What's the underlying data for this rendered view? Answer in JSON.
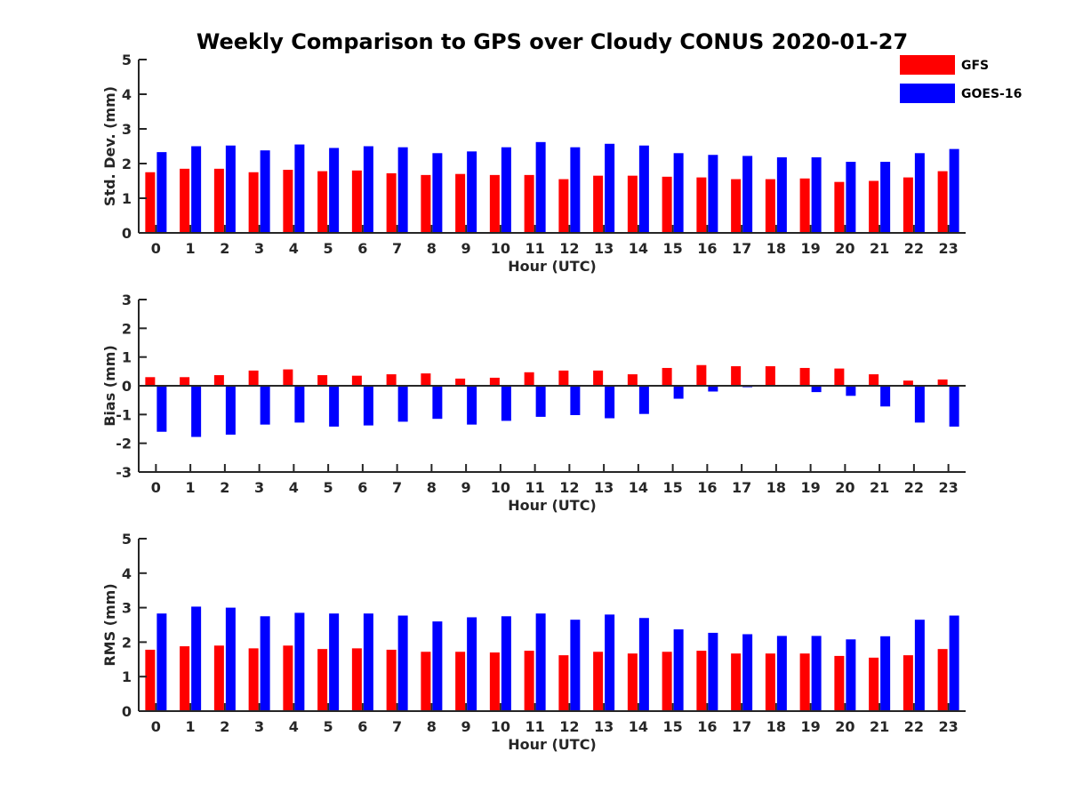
{
  "title": "Weekly Comparison to GPS over Cloudy CONUS 2020-01-27",
  "legend": {
    "placement": "top-right",
    "items": [
      {
        "name": "GFS",
        "color": "#ff0000"
      },
      {
        "name": "GOES-16",
        "color": "#0000ff"
      }
    ]
  },
  "chart_data": [
    {
      "type": "bar",
      "xlabel": "Hour (UTC)",
      "ylabel": "Std. Dev. (mm)",
      "ylim": [
        0,
        5
      ],
      "yticks": [
        "0",
        "1",
        "2",
        "3",
        "4",
        "5"
      ],
      "categories": [
        "0",
        "1",
        "2",
        "3",
        "4",
        "5",
        "6",
        "7",
        "8",
        "9",
        "10",
        "11",
        "12",
        "13",
        "14",
        "15",
        "16",
        "17",
        "18",
        "19",
        "20",
        "21",
        "22",
        "23"
      ],
      "series": [
        {
          "name": "GFS",
          "color": "#ff0000",
          "values": [
            1.75,
            1.85,
            1.85,
            1.75,
            1.82,
            1.78,
            1.8,
            1.72,
            1.67,
            1.7,
            1.67,
            1.67,
            1.55,
            1.65,
            1.65,
            1.62,
            1.6,
            1.55,
            1.55,
            1.57,
            1.47,
            1.5,
            1.6,
            1.78
          ]
        },
        {
          "name": "GOES-16",
          "color": "#0000ff",
          "values": [
            2.33,
            2.5,
            2.52,
            2.38,
            2.55,
            2.45,
            2.5,
            2.47,
            2.3,
            2.35,
            2.47,
            2.62,
            2.47,
            2.57,
            2.52,
            2.3,
            2.25,
            2.22,
            2.18,
            2.18,
            2.05,
            2.05,
            2.3,
            2.42
          ]
        }
      ]
    },
    {
      "type": "bar",
      "xlabel": "Hour (UTC)",
      "ylabel": "Bias (mm)",
      "ylim": [
        -3,
        3
      ],
      "yticks": [
        "-3",
        "-2",
        "-1",
        "0",
        "1",
        "2",
        "3"
      ],
      "categories": [
        "0",
        "1",
        "2",
        "3",
        "4",
        "5",
        "6",
        "7",
        "8",
        "9",
        "10",
        "11",
        "12",
        "13",
        "14",
        "15",
        "16",
        "17",
        "18",
        "19",
        "20",
        "21",
        "22",
        "23"
      ],
      "series": [
        {
          "name": "GFS",
          "color": "#ff0000",
          "values": [
            0.3,
            0.3,
            0.37,
            0.53,
            0.57,
            0.37,
            0.35,
            0.4,
            0.43,
            0.25,
            0.28,
            0.47,
            0.53,
            0.53,
            0.4,
            0.62,
            0.72,
            0.68,
            0.68,
            0.62,
            0.6,
            0.4,
            0.18,
            0.22
          ]
        },
        {
          "name": "GOES-16",
          "color": "#0000ff",
          "values": [
            -1.6,
            -1.78,
            -1.7,
            -1.35,
            -1.28,
            -1.42,
            -1.38,
            -1.25,
            -1.15,
            -1.35,
            -1.22,
            -1.08,
            -1.02,
            -1.13,
            -0.98,
            -0.45,
            -0.2,
            -0.05,
            0,
            -0.22,
            -0.35,
            -0.72,
            -1.28,
            -1.42
          ]
        }
      ]
    },
    {
      "type": "bar",
      "xlabel": "Hour (UTC)",
      "ylabel": "RMS (mm)",
      "ylim": [
        0,
        5
      ],
      "yticks": [
        "0",
        "1",
        "2",
        "3",
        "4",
        "5"
      ],
      "categories": [
        "0",
        "1",
        "2",
        "3",
        "4",
        "5",
        "6",
        "7",
        "8",
        "9",
        "10",
        "11",
        "12",
        "13",
        "14",
        "15",
        "16",
        "17",
        "18",
        "19",
        "20",
        "21",
        "22",
        "23"
      ],
      "series": [
        {
          "name": "GFS",
          "color": "#ff0000",
          "values": [
            1.78,
            1.88,
            1.9,
            1.82,
            1.9,
            1.8,
            1.82,
            1.78,
            1.72,
            1.72,
            1.7,
            1.75,
            1.62,
            1.72,
            1.67,
            1.72,
            1.75,
            1.67,
            1.67,
            1.67,
            1.6,
            1.55,
            1.62,
            1.8
          ]
        },
        {
          "name": "GOES-16",
          "color": "#0000ff",
          "values": [
            2.83,
            3.03,
            3.0,
            2.75,
            2.85,
            2.83,
            2.83,
            2.77,
            2.6,
            2.72,
            2.75,
            2.83,
            2.65,
            2.8,
            2.7,
            2.37,
            2.27,
            2.23,
            2.18,
            2.18,
            2.08,
            2.17,
            2.65,
            2.77
          ]
        }
      ]
    }
  ]
}
